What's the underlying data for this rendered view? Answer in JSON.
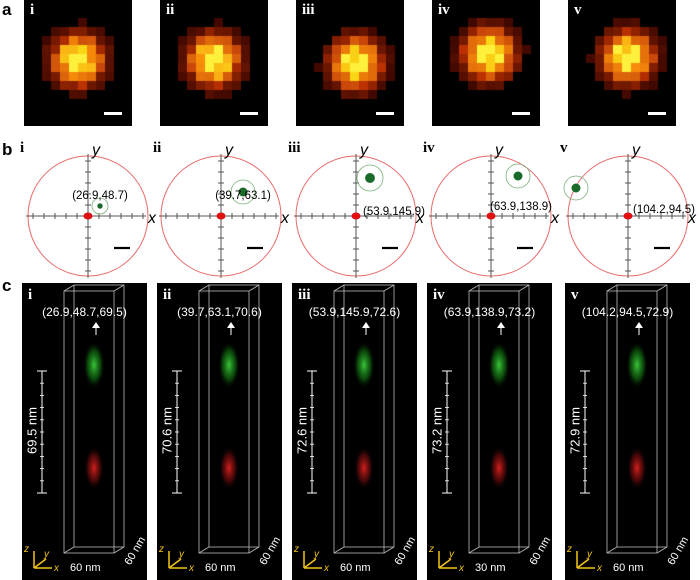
{
  "figure": {
    "row_labels": [
      "a",
      "b",
      "c"
    ],
    "panels": [
      "i",
      "ii",
      "iii",
      "iv",
      "v"
    ],
    "panel_a": {
      "items": [
        {
          "roman": "i"
        },
        {
          "roman": "ii"
        },
        {
          "roman": "iii"
        },
        {
          "roman": "iv"
        },
        {
          "roman": "v"
        }
      ]
    },
    "panel_b": {
      "axis_x": "x",
      "axis_y": "y",
      "items": [
        {
          "roman": "i",
          "coord": "(26.9,48.7)"
        },
        {
          "roman": "ii",
          "coord": "(39.7,63.1)"
        },
        {
          "roman": "iii",
          "coord": "(53.9,145.9)"
        },
        {
          "roman": "iv",
          "coord": "(63.9,138.9)"
        },
        {
          "roman": "v",
          "coord": "(104.2,94.5)"
        }
      ]
    },
    "panel_c": {
      "axis_z": "z",
      "axis_y": "y",
      "axis_x": "x",
      "items": [
        {
          "roman": "i",
          "coord3": "(26.9,48.7,69.5)",
          "distance": "69.5 nm",
          "x_scale": "60 nm",
          "y_scale": "60 nm"
        },
        {
          "roman": "ii",
          "coord3": "(39.7,63.1,70.6)",
          "distance": "70.6 nm",
          "x_scale": "60 nm",
          "y_scale": "60 nm"
        },
        {
          "roman": "iii",
          "coord3": "(53.9,145.9,72.6)",
          "distance": "72.6 nm",
          "x_scale": "60 nm",
          "y_scale": "60 nm"
        },
        {
          "roman": "iv",
          "coord3": "(63.9,138.9,73.2)",
          "distance": "73.2 nm",
          "x_scale": "30 nm",
          "y_scale": "60 nm"
        },
        {
          "roman": "v",
          "coord3": "(104.2,94.5,72.9)",
          "distance": "72.9 nm",
          "x_scale": "60 nm",
          "y_scale": "60 nm"
        }
      ]
    },
    "colors": {
      "circle": "#e66a6a",
      "red_spot": "#e01010",
      "green_spot": "#1a6a2a",
      "psf_core": "#ffff40",
      "axis_yellow": "#f2c417"
    }
  }
}
